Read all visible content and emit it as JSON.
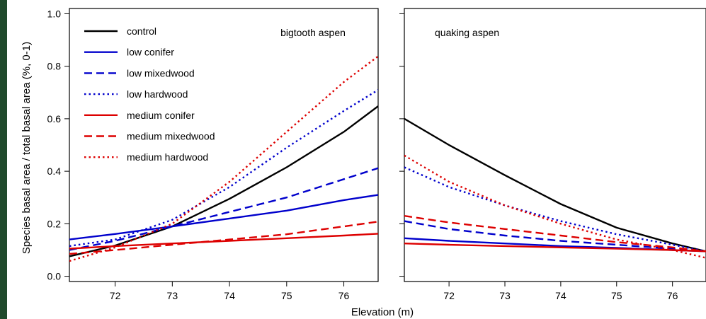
{
  "chart_data": {
    "type": "line",
    "xlabel": "Elevation (m)",
    "ylabel": "Species basal area / total basal area (%, 0-1)",
    "xlim": [
      71.2,
      76.6
    ],
    "ylim": [
      -0.02,
      1.02
    ],
    "xticks": [
      72,
      73,
      74,
      75,
      76
    ],
    "yticks": [
      0.0,
      0.2,
      0.4,
      0.6,
      0.8,
      1.0
    ],
    "ytick_labels": [
      "0.0",
      "0.2",
      "0.4",
      "0.6",
      "0.8",
      "1.0"
    ],
    "grid": false,
    "legend_position": "top-left",
    "legend": [
      {
        "name": "control",
        "color": "#000000",
        "dash": "solid"
      },
      {
        "name": "low conifer",
        "color": "#0000cc",
        "dash": "solid"
      },
      {
        "name": "low mixedwood",
        "color": "#0000cc",
        "dash": "dashed"
      },
      {
        "name": "low hardwood",
        "color": "#0000cc",
        "dash": "dotted"
      },
      {
        "name": "medium conifer",
        "color": "#dd0000",
        "dash": "solid"
      },
      {
        "name": "medium mixedwood",
        "color": "#dd0000",
        "dash": "dashed"
      },
      {
        "name": "medium hardwood",
        "color": "#dd0000",
        "dash": "dotted"
      }
    ],
    "panels": [
      {
        "title": "bigtooth aspen",
        "series": [
          {
            "name": "control",
            "x": [
              71.2,
              72,
              73,
              74,
              75,
              76,
              76.6
            ],
            "y": [
              0.076,
              0.117,
              0.19,
              0.295,
              0.415,
              0.55,
              0.648
            ]
          },
          {
            "name": "low conifer",
            "x": [
              71.2,
              72,
              73,
              74,
              75,
              76,
              76.6
            ],
            "y": [
              0.14,
              0.161,
              0.19,
              0.22,
              0.25,
              0.29,
              0.31
            ]
          },
          {
            "name": "low mixedwood",
            "x": [
              71.2,
              72,
              73,
              74,
              75,
              76,
              76.6
            ],
            "y": [
              0.1,
              0.135,
              0.19,
              0.245,
              0.3,
              0.37,
              0.412
            ]
          },
          {
            "name": "low hardwood",
            "x": [
              71.2,
              72,
              73,
              74,
              75,
              76,
              76.6
            ],
            "y": [
              0.115,
              0.14,
              0.215,
              0.34,
              0.49,
              0.63,
              0.71
            ]
          },
          {
            "name": "medium conifer",
            "x": [
              71.2,
              72,
              73,
              74,
              75,
              76,
              76.6
            ],
            "y": [
              0.105,
              0.115,
              0.125,
              0.135,
              0.145,
              0.155,
              0.162
            ]
          },
          {
            "name": "medium mixedwood",
            "x": [
              71.2,
              72,
              73,
              74,
              75,
              76,
              76.6
            ],
            "y": [
              0.085,
              0.1,
              0.12,
              0.14,
              0.16,
              0.19,
              0.208
            ]
          },
          {
            "name": "medium hardwood",
            "x": [
              71.2,
              72,
              73,
              74,
              75,
              76,
              76.6
            ],
            "y": [
              0.058,
              0.11,
              0.2,
              0.36,
              0.55,
              0.74,
              0.838
            ]
          }
        ]
      },
      {
        "title": "quaking aspen",
        "series": [
          {
            "name": "control",
            "x": [
              71.2,
              72,
              73,
              74,
              75,
              76,
              76.6
            ],
            "y": [
              0.6,
              0.5,
              0.385,
              0.275,
              0.185,
              0.125,
              0.095
            ]
          },
          {
            "name": "low conifer",
            "x": [
              71.2,
              72,
              73,
              74,
              75,
              76,
              76.6
            ],
            "y": [
              0.145,
              0.135,
              0.125,
              0.115,
              0.108,
              0.1,
              0.095
            ]
          },
          {
            "name": "low mixedwood",
            "x": [
              71.2,
              72,
              73,
              74,
              75,
              76,
              76.6
            ],
            "y": [
              0.21,
              0.18,
              0.155,
              0.135,
              0.12,
              0.105,
              0.095
            ]
          },
          {
            "name": "low hardwood",
            "x": [
              71.2,
              72,
              73,
              74,
              75,
              76,
              76.6
            ],
            "y": [
              0.415,
              0.34,
              0.27,
              0.21,
              0.16,
              0.12,
              0.095
            ]
          },
          {
            "name": "medium conifer",
            "x": [
              71.2,
              72,
              73,
              74,
              75,
              76,
              76.6
            ],
            "y": [
              0.125,
              0.12,
              0.115,
              0.11,
              0.105,
              0.1,
              0.095
            ]
          },
          {
            "name": "medium mixedwood",
            "x": [
              71.2,
              72,
              73,
              74,
              75,
              76,
              76.6
            ],
            "y": [
              0.23,
              0.205,
              0.18,
              0.155,
              0.13,
              0.11,
              0.095
            ]
          },
          {
            "name": "medium hardwood",
            "x": [
              71.2,
              72,
              73,
              74,
              75,
              76,
              76.6
            ],
            "y": [
              0.46,
              0.36,
              0.27,
              0.2,
              0.14,
              0.1,
              0.07
            ]
          }
        ]
      }
    ]
  }
}
